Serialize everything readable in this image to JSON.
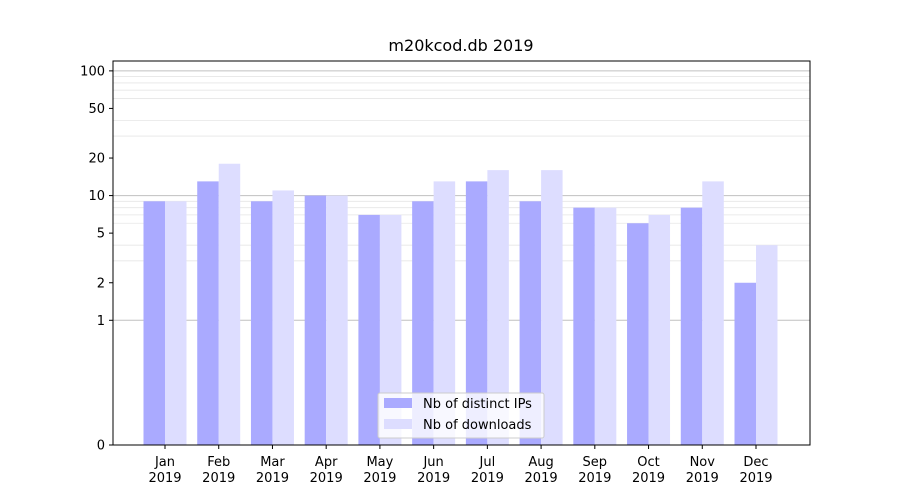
{
  "chart_data": {
    "type": "bar",
    "title": "m20kcod.db 2019",
    "xlabel": "",
    "ylabel": "",
    "yscale": "symlog",
    "ylim": [
      0,
      120
    ],
    "yticks": [
      0,
      1,
      2,
      5,
      10,
      20,
      50,
      100
    ],
    "grid": "y",
    "legend_position": "lower-center",
    "categories": [
      [
        "Jan",
        "2019"
      ],
      [
        "Feb",
        "2019"
      ],
      [
        "Mar",
        "2019"
      ],
      [
        "Apr",
        "2019"
      ],
      [
        "May",
        "2019"
      ],
      [
        "Jun",
        "2019"
      ],
      [
        "Jul",
        "2019"
      ],
      [
        "Aug",
        "2019"
      ],
      [
        "Sep",
        "2019"
      ],
      [
        "Oct",
        "2019"
      ],
      [
        "Nov",
        "2019"
      ],
      [
        "Dec",
        "2019"
      ]
    ],
    "series": [
      {
        "name": "Nb of distinct IPs",
        "color": "#aaaaff",
        "values": [
          9,
          13,
          9,
          10,
          7,
          9,
          13,
          9,
          8,
          6,
          8,
          2
        ]
      },
      {
        "name": "Nb of downloads",
        "color": "#ddddff",
        "values": [
          9,
          18,
          11,
          10,
          7,
          13,
          16,
          16,
          8,
          7,
          13,
          4
        ]
      }
    ]
  }
}
